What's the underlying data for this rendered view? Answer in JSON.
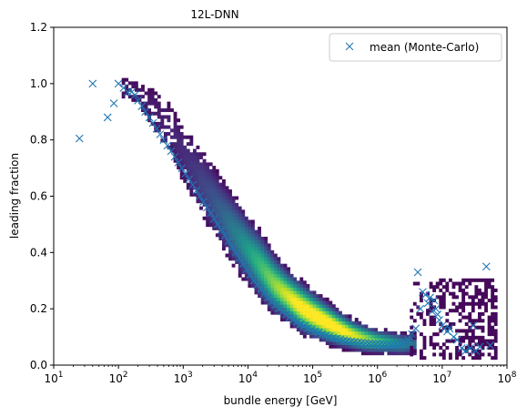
{
  "chart_data": {
    "type": "scatter",
    "title": "12L-DNN",
    "xlabel": "bundle energy [GeV]",
    "ylabel": "leading fraction",
    "xscale": "log",
    "xlim": [
      10,
      100000000
    ],
    "ylim": [
      0.0,
      1.2
    ],
    "x_ticks": [
      10,
      100,
      1000,
      10000,
      100000,
      1000000,
      10000000,
      100000000
    ],
    "x_tick_labels": [
      {
        "base": "10",
        "exp": "1"
      },
      {
        "base": "10",
        "exp": "2"
      },
      {
        "base": "10",
        "exp": "3"
      },
      {
        "base": "10",
        "exp": "4"
      },
      {
        "base": "10",
        "exp": "5"
      },
      {
        "base": "10",
        "exp": "6"
      },
      {
        "base": "10",
        "exp": "7"
      },
      {
        "base": "10",
        "exp": "8"
      }
    ],
    "y_ticks": [
      0.0,
      0.2,
      0.4,
      0.6,
      0.8,
      1.0,
      1.2
    ],
    "y_tick_labels": [
      "0.0",
      "0.2",
      "0.4",
      "0.6",
      "0.8",
      "1.0",
      "1.2"
    ],
    "grid": false,
    "legend": {
      "position": "top-right",
      "entries": [
        "mean (Monte-Carlo)"
      ]
    },
    "histogram": {
      "colormap": "viridis",
      "description_shape": "2D density of leading fraction vs bundle energy",
      "ridge": [
        {
          "logx": 2.2,
          "y": 0.98,
          "w": 0.05
        },
        {
          "logx": 2.5,
          "y": 0.92,
          "w": 0.08
        },
        {
          "logx": 2.8,
          "y": 0.84,
          "w": 0.09
        },
        {
          "logx": 3.0,
          "y": 0.75,
          "w": 0.09
        },
        {
          "logx": 3.2,
          "y": 0.68,
          "w": 0.09
        },
        {
          "logx": 3.4,
          "y": 0.61,
          "w": 0.09
        },
        {
          "logx": 3.6,
          "y": 0.54,
          "w": 0.08
        },
        {
          "logx": 3.8,
          "y": 0.47,
          "w": 0.08
        },
        {
          "logx": 4.0,
          "y": 0.41,
          "w": 0.07
        },
        {
          "logx": 4.2,
          "y": 0.35,
          "w": 0.07
        },
        {
          "logx": 4.4,
          "y": 0.29,
          "w": 0.06
        },
        {
          "logx": 4.6,
          "y": 0.25,
          "w": 0.05
        },
        {
          "logx": 4.8,
          "y": 0.21,
          "w": 0.05
        },
        {
          "logx": 5.0,
          "y": 0.18,
          "w": 0.045
        },
        {
          "logx": 5.2,
          "y": 0.155,
          "w": 0.04
        },
        {
          "logx": 5.4,
          "y": 0.13,
          "w": 0.035
        },
        {
          "logx": 5.6,
          "y": 0.11,
          "w": 0.03
        },
        {
          "logx": 5.8,
          "y": 0.095,
          "w": 0.028
        },
        {
          "logx": 6.0,
          "y": 0.085,
          "w": 0.025
        },
        {
          "logx": 6.2,
          "y": 0.08,
          "w": 0.025
        },
        {
          "logx": 6.4,
          "y": 0.075,
          "w": 0.025
        }
      ]
    },
    "series": [
      {
        "name": "mean (Monte-Carlo)",
        "marker": "x",
        "color": "#1f77b4",
        "points": [
          [
            25,
            0.805
          ],
          [
            40,
            1.0
          ],
          [
            68,
            0.88
          ],
          [
            85,
            0.93
          ],
          [
            100,
            1.0
          ],
          [
            120,
            0.985
          ],
          [
            140,
            0.97
          ],
          [
            160,
            0.97
          ],
          [
            180,
            0.96
          ],
          [
            200,
            0.94
          ],
          [
            230,
            0.92
          ],
          [
            260,
            0.9
          ],
          [
            300,
            0.88
          ],
          [
            340,
            0.86
          ],
          [
            390,
            0.84
          ],
          [
            440,
            0.82
          ],
          [
            500,
            0.8
          ],
          [
            570,
            0.78
          ],
          [
            650,
            0.76
          ],
          [
            740,
            0.74
          ],
          [
            840,
            0.72
          ],
          [
            950,
            0.7
          ],
          [
            1080,
            0.68
          ],
          [
            1230,
            0.66
          ],
          [
            1400,
            0.64
          ],
          [
            1600,
            0.62
          ],
          [
            1800,
            0.6
          ],
          [
            2050,
            0.58
          ],
          [
            2330,
            0.56
          ],
          [
            2650,
            0.54
          ],
          [
            3000,
            0.52
          ],
          [
            3400,
            0.5
          ],
          [
            3900,
            0.48
          ],
          [
            4400,
            0.46
          ],
          [
            5000,
            0.44
          ],
          [
            5700,
            0.42
          ],
          [
            6500,
            0.4
          ],
          [
            7400,
            0.38
          ],
          [
            8400,
            0.36
          ],
          [
            9500,
            0.34
          ],
          [
            10800,
            0.32
          ],
          [
            12300,
            0.3
          ],
          [
            14000,
            0.285
          ],
          [
            16000,
            0.27
          ],
          [
            18000,
            0.255
          ],
          [
            20500,
            0.24
          ],
          [
            23300,
            0.225
          ],
          [
            26500,
            0.213
          ],
          [
            30000,
            0.2
          ],
          [
            34000,
            0.19
          ],
          [
            39000,
            0.18
          ],
          [
            44000,
            0.17
          ],
          [
            50000,
            0.16
          ],
          [
            57000,
            0.152
          ],
          [
            65000,
            0.145
          ],
          [
            74000,
            0.138
          ],
          [
            84000,
            0.131
          ],
          [
            95000,
            0.125
          ],
          [
            108000,
            0.12
          ],
          [
            123000,
            0.115
          ],
          [
            140000,
            0.11
          ],
          [
            160000,
            0.105
          ],
          [
            180000,
            0.1
          ],
          [
            205000,
            0.097
          ],
          [
            233000,
            0.094
          ],
          [
            265000,
            0.091
          ],
          [
            300000,
            0.088
          ],
          [
            340000,
            0.086
          ],
          [
            390000,
            0.084
          ],
          [
            440000,
            0.082
          ],
          [
            500000,
            0.08
          ],
          [
            570000,
            0.079
          ],
          [
            650000,
            0.078
          ],
          [
            740000,
            0.077
          ],
          [
            840000,
            0.076
          ],
          [
            950000,
            0.075
          ],
          [
            1080000,
            0.074
          ],
          [
            1230000,
            0.073
          ],
          [
            1400000,
            0.072
          ],
          [
            1600000,
            0.071
          ],
          [
            1800000,
            0.07
          ],
          [
            2050000,
            0.072
          ],
          [
            2330000,
            0.075
          ],
          [
            2650000,
            0.08
          ],
          [
            3000000,
            0.09
          ],
          [
            3400000,
            0.11
          ],
          [
            3900000,
            0.13
          ],
          [
            4200000,
            0.33
          ],
          [
            4600000,
            0.2
          ],
          [
            5000000,
            0.26
          ],
          [
            5500000,
            0.25
          ],
          [
            6000000,
            0.22
          ],
          [
            6500000,
            0.24
          ],
          [
            7000000,
            0.19
          ],
          [
            7500000,
            0.23
          ],
          [
            8000000,
            0.2
          ],
          [
            8500000,
            0.18
          ],
          [
            9000000,
            0.16
          ],
          [
            10000000,
            0.14
          ],
          [
            11000000,
            0.13
          ],
          [
            12000000,
            0.12
          ],
          [
            13000000,
            0.13
          ],
          [
            15000000,
            0.1
          ],
          [
            17000000,
            0.09
          ],
          [
            20000000,
            0.06
          ],
          [
            23000000,
            0.05
          ],
          [
            27000000,
            0.06
          ],
          [
            30000000,
            0.14
          ],
          [
            33000000,
            0.05
          ],
          [
            38000000,
            0.065
          ],
          [
            48000000,
            0.35
          ],
          [
            55000000,
            0.07
          ]
        ]
      }
    ]
  }
}
